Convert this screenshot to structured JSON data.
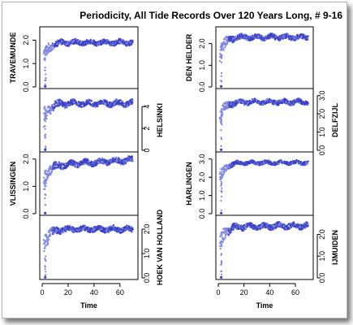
{
  "title": "Periodicity, All Tide Records Over 120 Years Long, # 9-16",
  "colors": {
    "points": "#3a3fc4",
    "points_light": "#7e86dc",
    "axis": "#000000",
    "background": "#ffffff"
  },
  "chart_data": {
    "type": "scatter",
    "x_label": "Time",
    "x_ticks": [
      0,
      20,
      40,
      60
    ],
    "xlim": [
      0,
      72
    ],
    "panels": [
      {
        "name": "TRAVEMUNDE",
        "column": 0,
        "row": 0,
        "label_side": "left",
        "ylim": [
          0,
          2.5
        ],
        "yticks": [
          "0.0",
          "1.0",
          "2.0"
        ],
        "ytick_values": [
          0,
          1,
          2
        ],
        "level": 1.9,
        "noise": 0.16,
        "drift": 0.0
      },
      {
        "name": "HELSINKI",
        "column": 0,
        "row": 1,
        "label_side": "right",
        "ylim": [
          0,
          5.5
        ],
        "yticks": [
          "0",
          "2",
          "4"
        ],
        "ytick_values": [
          0,
          2,
          4
        ],
        "level": 4.3,
        "noise": 0.4,
        "drift": 0.0
      },
      {
        "name": "VLISSINGEN",
        "column": 0,
        "row": 2,
        "label_side": "left",
        "ylim": [
          0,
          2.2
        ],
        "yticks": [
          "0.0",
          "1.0",
          "2.0"
        ],
        "ytick_values": [
          0,
          1,
          2
        ],
        "level": 1.75,
        "noise": 0.16,
        "drift": 0.22
      },
      {
        "name": "HOEK VAN HOLLAND",
        "column": 0,
        "row": 3,
        "label_side": "right",
        "ylim": [
          0,
          2.5
        ],
        "yticks": [
          "0.0",
          "1.0",
          "2.0"
        ],
        "ytick_values": [
          0,
          1,
          2
        ],
        "level": 2.0,
        "noise": 0.17,
        "drift": 0.0
      },
      {
        "name": "DEN HELDER",
        "column": 1,
        "row": 0,
        "label_side": "left",
        "ylim": [
          0,
          2.7
        ],
        "yticks": [
          "0.0",
          "1.0",
          "2.0"
        ],
        "ytick_values": [
          0,
          1,
          2
        ],
        "level": 2.3,
        "noise": 0.18,
        "drift": 0.0
      },
      {
        "name": "DELFZIJL",
        "column": 1,
        "row": 1,
        "label_side": "right",
        "ylim": [
          0,
          3.3
        ],
        "yticks": [
          "0.0",
          "1.0",
          "2.0",
          "3.0"
        ],
        "ytick_values": [
          0,
          1,
          2,
          3
        ],
        "level": 2.65,
        "noise": 0.2,
        "drift": 0.0
      },
      {
        "name": "HARLINGEN",
        "column": 1,
        "row": 2,
        "label_side": "left",
        "ylim": [
          0,
          3.3
        ],
        "yticks": [
          "0.0",
          "1.0",
          "2.0",
          "3.0"
        ],
        "ytick_values": [
          0,
          1,
          2,
          3
        ],
        "level": 2.8,
        "noise": 0.15,
        "drift": 0.0
      },
      {
        "name": "IJMUIDEN",
        "column": 1,
        "row": 3,
        "label_side": "right",
        "ylim": [
          0,
          2.8
        ],
        "yticks": [
          "0.0",
          "1.0",
          "2.0"
        ],
        "ytick_values": [
          0,
          1,
          2
        ],
        "level": 2.35,
        "noise": 0.2,
        "drift": 0.05
      }
    ]
  }
}
